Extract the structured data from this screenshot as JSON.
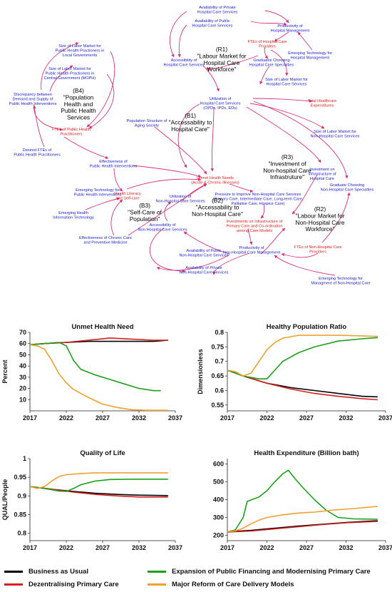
{
  "diagram": {
    "variables": [
      {
        "id": "v1",
        "lines": [
          "Availability of Private",
          "Hospital Care Services"
        ],
        "color": "blue"
      },
      {
        "id": "v2",
        "lines": [
          "Availability of Public",
          "Hospital Care Services"
        ],
        "color": "blue"
      },
      {
        "id": "v3",
        "lines": [
          "Productivity of",
          "Hospital Management"
        ],
        "color": "blue"
      },
      {
        "id": "v4",
        "lines": [
          "FTEs of Hospital Care",
          "Providers"
        ],
        "color": "red"
      },
      {
        "id": "v5",
        "lines": [
          "Emerging Technology for",
          "Hospital Management"
        ],
        "color": "blue"
      },
      {
        "id": "v6",
        "lines": [
          "Accessibility of",
          "Hospital Care Services"
        ],
        "color": "blue"
      },
      {
        "id": "v7",
        "lines": [
          "Graduates Choosing",
          "Hospital Care Specialties"
        ],
        "color": "blue"
      },
      {
        "id": "v8",
        "lines": [
          "Size of Labor Market for",
          "Hospital Care Services"
        ],
        "color": "blue"
      },
      {
        "id": "v9",
        "lines": [
          "Utilization of",
          "Hospital Care Services",
          "(OPDs, IPDs, EDs)"
        ],
        "color": "blue"
      },
      {
        "id": "v10",
        "lines": [
          "Total Healthcare",
          "Expenditures"
        ],
        "color": "red"
      },
      {
        "id": "v11",
        "lines": [
          "Size of Labor Market for",
          "Public Health Practioners in",
          "Local Governments"
        ],
        "color": "blue"
      },
      {
        "id": "v12",
        "lines": [
          "Size of Labor Market for",
          "Public Health Practioners in",
          "Central Government (MOPH)"
        ],
        "color": "blue"
      },
      {
        "id": "v13",
        "lines": [
          "Discrepancy between",
          "Demand and Supply of",
          "Public Health Interventions"
        ],
        "color": "blue"
      },
      {
        "id": "v14",
        "lines": [
          "FTEs of Public Health",
          "Practitioners"
        ],
        "color": "red"
      },
      {
        "id": "v15",
        "lines": [
          "Desired FTEs of",
          "Public Health Practitioners"
        ],
        "color": "blue"
      },
      {
        "id": "v16",
        "lines": [
          "Population Structure of",
          "Aging Society"
        ],
        "color": "blue"
      },
      {
        "id": "v17",
        "lines": [
          "Effectiveness of",
          "Public Health Interventions"
        ],
        "color": "blue"
      },
      {
        "id": "v18",
        "lines": [
          "Size of Labor Market for",
          "Non-Hospital Care Services"
        ],
        "color": "blue"
      },
      {
        "id": "v19",
        "lines": [
          "Emerging Technology for",
          "Public Health Interventions"
        ],
        "color": "blue"
      },
      {
        "id": "v20",
        "lines": [
          "Unmet Health Needs",
          "(Acute & Chronic Illnesses)"
        ],
        "color": "red"
      },
      {
        "id": "v21",
        "lines": [
          "Investment on",
          "Infrastructure of",
          "Hospital Care"
        ],
        "color": "blue"
      },
      {
        "id": "v22",
        "lines": [
          "Graduate Choosing",
          "Non-Hospital Care Specialties"
        ],
        "color": "blue"
      },
      {
        "id": "v23",
        "lines": [
          "Health Literacy",
          "and Self-care"
        ],
        "color": "red"
      },
      {
        "id": "v24",
        "lines": [
          "Utilization of",
          "Non-Hospital Care Services"
        ],
        "color": "blue"
      },
      {
        "id": "v25",
        "lines": [
          "Pressure to Improve Non-Hospital Care Services",
          "(Primary Care, Intermediate Care, Long-term Care,",
          "Palliative Care, Hospice Care)"
        ],
        "color": "blue"
      },
      {
        "id": "v26",
        "lines": [
          "Emerging Health",
          "Information Technology"
        ],
        "color": "blue"
      },
      {
        "id": "v27",
        "lines": [
          "Investments on Infrastructure of",
          "Primary Care and Co-ordination",
          "among Care Models"
        ],
        "color": "red"
      },
      {
        "id": "v28",
        "lines": [
          "Accessibility of",
          "Non-Hospital Care Services"
        ],
        "color": "blue"
      },
      {
        "id": "v29",
        "lines": [
          "Effectiveness of Chronic Care",
          "and Preventive Medicine"
        ],
        "color": "blue"
      },
      {
        "id": "v30",
        "lines": [
          "Productivity of",
          "Non-Hospital Care Management"
        ],
        "color": "blue"
      },
      {
        "id": "v31",
        "lines": [
          "Availability of Public",
          "Non-Hospital Care Services"
        ],
        "color": "blue"
      },
      {
        "id": "v32",
        "lines": [
          "FTEs of Non-Hospital Care",
          "Providers"
        ],
        "color": "red"
      },
      {
        "id": "v33",
        "lines": [
          "Availability of Private",
          "Non-Hospital Care Services"
        ],
        "color": "blue"
      },
      {
        "id": "v34",
        "lines": [
          "Emerging Technology for",
          "Managment of Non-Hospital Care"
        ],
        "color": "blue"
      }
    ],
    "loops": [
      {
        "id": "R1",
        "lines": [
          "(R1)",
          "\"Labour Market for",
          "Hospital Care",
          "Workforce\""
        ]
      },
      {
        "id": "B4",
        "lines": [
          "(B4)",
          "\"Population",
          "Health and",
          "Public Health",
          "Services"
        ]
      },
      {
        "id": "B1",
        "lines": [
          "(B1)",
          "\"Accessability to",
          "Hospital Care\""
        ]
      },
      {
        "id": "R3",
        "lines": [
          "(R3)",
          "\"Investment of",
          "Non-hospital Care",
          "Infrastruture\""
        ]
      },
      {
        "id": "R2",
        "lines": [
          "(R2)",
          "\"Labour Market for",
          "Non-Hospital Care",
          "Workforce\""
        ]
      },
      {
        "id": "B2",
        "lines": [
          "(B2)",
          "\"Accessability to",
          "Non-Hospital Care\""
        ]
      },
      {
        "id": "B3",
        "lines": [
          "(B3)",
          "\"Self-Care of",
          "Population\""
        ]
      }
    ]
  },
  "colors": {
    "link": "#d6337a",
    "var_blue": "#1a1ad0",
    "var_red": "#e02020",
    "business_as_usual": "#000000",
    "expansion": "#1e9e1e",
    "dezentralising": "#d42020",
    "major_reform": "#f0a030"
  },
  "legend": [
    {
      "key": "business_as_usual",
      "label": "Business as Usual"
    },
    {
      "key": "expansion",
      "label": "Expansion of Public Financing and Modernising Primary Care"
    },
    {
      "key": "dezentralising",
      "label": "Dezentralising Primary Care"
    },
    {
      "key": "major_reform",
      "label": "Major Reform of Care Delivery Models"
    }
  ],
  "chart_data": [
    {
      "type": "line",
      "title": "Unmet Health Need",
      "xlabel": "",
      "ylabel": "Percent",
      "xlim": [
        2017,
        2037
      ],
      "ylim": [
        0,
        70
      ],
      "yticks": [
        10,
        20,
        30,
        40,
        50,
        60,
        70
      ],
      "xticks": [
        2017,
        2022,
        2027,
        2032,
        2037
      ],
      "grid": false,
      "series": [
        {
          "key": "business_as_usual",
          "x": [
            2017,
            2019,
            2022,
            2025,
            2028,
            2031,
            2034,
            2036
          ],
          "y": [
            59,
            60,
            61,
            62,
            62,
            62,
            62,
            63
          ]
        },
        {
          "key": "dezentralising",
          "x": [
            2017,
            2019,
            2022,
            2025,
            2028,
            2031,
            2034,
            2036
          ],
          "y": [
            59,
            60,
            61,
            63,
            65,
            64,
            63,
            63
          ]
        },
        {
          "key": "expansion",
          "x": [
            2017,
            2019,
            2021,
            2022,
            2023,
            2024,
            2026,
            2028,
            2030,
            2032,
            2034,
            2035
          ],
          "y": [
            59,
            60,
            61,
            58,
            45,
            37,
            32,
            28,
            24,
            20,
            18,
            18
          ]
        },
        {
          "key": "major_reform",
          "x": [
            2017,
            2018,
            2019,
            2020,
            2021,
            2022,
            2023,
            2025,
            2027,
            2029,
            2031,
            2033,
            2036
          ],
          "y": [
            59,
            58,
            55,
            45,
            33,
            25,
            19,
            12,
            6,
            3,
            1,
            0.5,
            0.5
          ]
        }
      ]
    },
    {
      "type": "line",
      "title": "Healthy Population Ratio",
      "xlabel": "",
      "ylabel": "Dimensionless",
      "xlim": [
        2017,
        2037
      ],
      "ylim": [
        0.53,
        0.8
      ],
      "yticks": [
        0.55,
        0.6,
        0.65,
        0.7,
        0.75,
        0.8
      ],
      "xticks": [
        2017,
        2022,
        2027,
        2032,
        2037
      ],
      "grid": false,
      "series": [
        {
          "key": "business_as_usual",
          "x": [
            2017,
            2019,
            2022,
            2025,
            2028,
            2031,
            2034,
            2036
          ],
          "y": [
            0.67,
            0.65,
            0.625,
            0.61,
            0.6,
            0.59,
            0.58,
            0.578
          ]
        },
        {
          "key": "dezentralising",
          "x": [
            2017,
            2019,
            2022,
            2025,
            2028,
            2031,
            2034,
            2036
          ],
          "y": [
            0.67,
            0.65,
            0.625,
            0.605,
            0.59,
            0.58,
            0.572,
            0.568
          ]
        },
        {
          "key": "expansion",
          "x": [
            2017,
            2019,
            2021,
            2022,
            2023,
            2024,
            2026,
            2028,
            2031,
            2034,
            2036
          ],
          "y": [
            0.67,
            0.65,
            0.64,
            0.64,
            0.67,
            0.7,
            0.73,
            0.75,
            0.77,
            0.778,
            0.782
          ]
        },
        {
          "key": "major_reform",
          "x": [
            2017,
            2018,
            2019,
            2020,
            2021,
            2022,
            2023,
            2024,
            2026,
            2028,
            2031,
            2034,
            2036
          ],
          "y": [
            0.67,
            0.665,
            0.65,
            0.66,
            0.7,
            0.74,
            0.765,
            0.78,
            0.79,
            0.79,
            0.79,
            0.788,
            0.786
          ]
        }
      ]
    },
    {
      "type": "line",
      "title": "Quality of Life",
      "xlabel": "",
      "ylabel": "QUAL/People",
      "xlim": [
        2017,
        2037
      ],
      "ylim": [
        0.78,
        1.0
      ],
      "yticks": [
        0.8,
        0.85,
        0.9,
        0.95,
        1
      ],
      "xticks": [
        2017,
        2022,
        2027,
        2032,
        2037
      ],
      "grid": false,
      "series": [
        {
          "key": "business_as_usual",
          "x": [
            2017,
            2020,
            2023,
            2026,
            2029,
            2032,
            2036
          ],
          "y": [
            0.925,
            0.918,
            0.912,
            0.907,
            0.904,
            0.902,
            0.901
          ]
        },
        {
          "key": "dezentralising",
          "x": [
            2017,
            2020,
            2023,
            2026,
            2029,
            2032,
            2036
          ],
          "y": [
            0.925,
            0.918,
            0.91,
            0.904,
            0.9,
            0.897,
            0.897
          ]
        },
        {
          "key": "expansion",
          "x": [
            2017,
            2019,
            2021,
            2022,
            2023,
            2024,
            2026,
            2028,
            2031,
            2034,
            2036
          ],
          "y": [
            0.925,
            0.92,
            0.913,
            0.912,
            0.92,
            0.93,
            0.94,
            0.944,
            0.945,
            0.945,
            0.945
          ]
        },
        {
          "key": "major_reform",
          "x": [
            2017,
            2018,
            2019,
            2020,
            2021,
            2022,
            2024,
            2026,
            2028,
            2031,
            2034,
            2036
          ],
          "y": [
            0.925,
            0.92,
            0.925,
            0.94,
            0.952,
            0.957,
            0.96,
            0.962,
            0.962,
            0.962,
            0.962,
            0.962
          ]
        }
      ]
    },
    {
      "type": "line",
      "title": "Health Expenditure (Billion bath)",
      "xlabel": "",
      "ylabel": "",
      "xlim": [
        2017,
        2037
      ],
      "ylim": [
        170,
        630
      ],
      "yticks": [
        200,
        300,
        400,
        500,
        600
      ],
      "xticks": [
        2017,
        2022,
        2027,
        2032,
        2037
      ],
      "grid": false,
      "series": [
        {
          "key": "business_as_usual",
          "x": [
            2017,
            2020,
            2023,
            2026,
            2029,
            2032,
            2036
          ],
          "y": [
            220,
            228,
            240,
            252,
            262,
            272,
            282
          ]
        },
        {
          "key": "dezentralising",
          "x": [
            2017,
            2020,
            2023,
            2026,
            2029,
            2032,
            2036
          ],
          "y": [
            218,
            224,
            236,
            248,
            260,
            270,
            278
          ]
        },
        {
          "key": "expansion",
          "x": [
            2017,
            2018,
            2019,
            2019.5,
            2021,
            2022,
            2023,
            2024,
            2024.7,
            2025.5,
            2026.5,
            2028,
            2029.5,
            2031,
            2033,
            2036
          ],
          "y": [
            220,
            230,
            300,
            390,
            415,
            450,
            500,
            545,
            565,
            520,
            470,
            400,
            340,
            300,
            292,
            290
          ]
        },
        {
          "key": "major_reform",
          "x": [
            2017,
            2018,
            2019,
            2020,
            2021,
            2022,
            2024,
            2026,
            2028,
            2030,
            2033,
            2036
          ],
          "y": [
            220,
            225,
            240,
            265,
            285,
            300,
            315,
            325,
            330,
            340,
            350,
            362
          ]
        }
      ]
    }
  ]
}
